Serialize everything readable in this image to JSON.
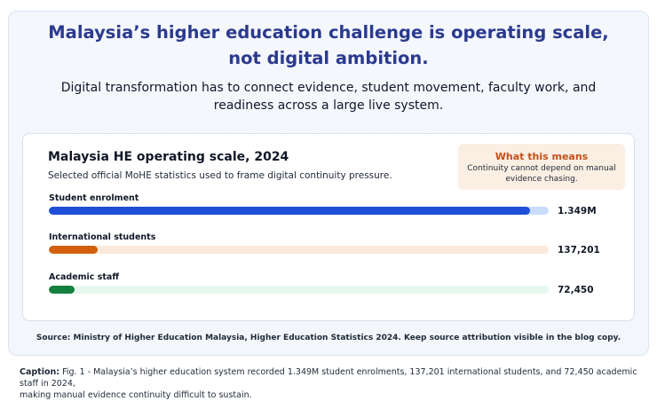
{
  "headline": {
    "line1": "Malaysia’s higher education challenge is operating scale,",
    "line2": "not digital ambition."
  },
  "subhead": {
    "line1": "Digital transformation has to connect evidence, student movement, faculty work, and",
    "line2": "readiness across a large live system."
  },
  "callout": {
    "title": "What this means",
    "body_line1": "Continuity cannot depend on manual",
    "body_line2": "evidence chasing."
  },
  "chart_data": {
    "type": "bar",
    "orientation": "horizontal",
    "title": "Malaysia HE operating scale, 2024",
    "subtitle": "Selected official MoHE statistics used to frame digital continuity pressure.",
    "categories": [
      "Student enrolment",
      "International students",
      "Academic staff"
    ],
    "values": [
      1349000,
      137201,
      72450
    ],
    "value_labels": [
      "1.349M",
      "137,201",
      "72,450"
    ],
    "xlim": [
      0,
      1400000
    ],
    "grid": false,
    "legend": "none",
    "bar_colors": [
      "#1d4fd8",
      "#d2600f",
      "#15803d"
    ],
    "track_colors": [
      "#c9dcfb",
      "#fbe9dc",
      "#e7f8ee"
    ]
  },
  "source": "Source: Ministry of Higher Education Malaysia, Higher Education Statistics 2024. Keep source attribution visible in the blog copy.",
  "caption": {
    "label": "Caption:",
    "text_line1": " Fig. 1 - Malaysia’s higher education system recorded 1.349M student enrolments, 137,201 international students, and 72,450 academic staff in 2024,",
    "text_line2": "making manual evidence continuity difficult to sustain."
  }
}
